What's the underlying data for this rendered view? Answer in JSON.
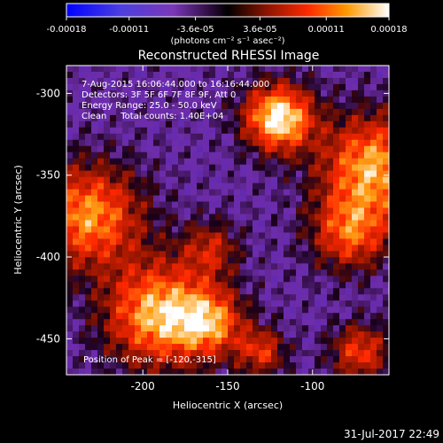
{
  "colorbar": {
    "tick_labels": [
      "-0.00018",
      "-0.00011",
      "-3.6e-05",
      "3.6e-05",
      "0.00011",
      "0.00018"
    ],
    "tick_values": [
      -0.00018,
      -0.00011,
      -3.6e-05,
      3.6e-05,
      0.00011,
      0.00018
    ],
    "range": [
      -0.00018,
      0.00018
    ],
    "unit_label": "(photons cm⁻² s⁻¹ asec⁻²)"
  },
  "chart_data": {
    "type": "heatmap",
    "title": "Reconstructed RHESSI Image",
    "xlabel": "Heliocentric X (arcsec)",
    "ylabel": "Heliocentric Y (arcsec)",
    "xlim": [
      -245,
      -55
    ],
    "ylim": [
      -472,
      -283
    ],
    "xticks": [
      -200,
      -150,
      -100
    ],
    "yticks": [
      -300,
      -350,
      -400,
      -450
    ],
    "xtick_labels": [
      "-200",
      "-150",
      "-100"
    ],
    "ytick_labels": [
      "-300",
      "-350",
      "-400",
      "-450"
    ],
    "colormap": [
      "#0000ff",
      "#7f2fbf",
      "#000000",
      "#b22000",
      "#ff8000",
      "#ffffc0",
      "#ffffff"
    ],
    "sources": [
      {
        "x": -120,
        "y": -315,
        "size": 14,
        "strength": 1.0
      },
      {
        "x": -64,
        "y": -345,
        "size": 22,
        "strength": 0.8
      },
      {
        "x": -78,
        "y": -385,
        "size": 16,
        "strength": 0.6
      },
      {
        "x": -190,
        "y": -435,
        "size": 22,
        "strength": 0.85
      },
      {
        "x": -160,
        "y": -440,
        "size": 14,
        "strength": 0.6
      },
      {
        "x": -232,
        "y": -375,
        "size": 22,
        "strength": 0.75
      },
      {
        "x": -160,
        "y": -395,
        "size": 12,
        "strength": 0.4
      },
      {
        "x": -130,
        "y": -458,
        "size": 10,
        "strength": 0.5
      },
      {
        "x": -72,
        "y": -458,
        "size": 12,
        "strength": 0.55
      }
    ],
    "annotations": [
      "7-Aug-2015 16:06:44.000 to 16:16:44.000",
      "Detectors: 3F 5F 6F 7F 8F 9F, Att 0",
      "Energy Range: 25.0 - 50.0 keV",
      "Clean     Total counts: 1.40E+04",
      "Position of Peak = [-120,-315]"
    ]
  },
  "footer": {
    "date": "31-Jul-2017 22:49"
  }
}
